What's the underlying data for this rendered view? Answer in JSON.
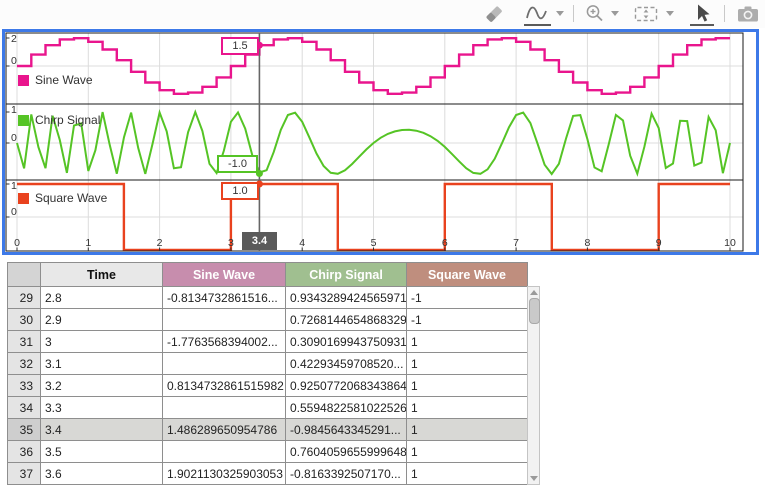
{
  "toolbar": {
    "tools": [
      {
        "name": "eraser",
        "active": false,
        "has_dropdown": false
      },
      {
        "name": "signal-trace",
        "active": true,
        "has_dropdown": true
      },
      {
        "name": "zoom-in",
        "active": false,
        "has_dropdown": true
      },
      {
        "name": "fit-to-view",
        "active": false,
        "has_dropdown": true
      },
      {
        "name": "pointer",
        "active": true,
        "has_dropdown": false
      },
      {
        "name": "snapshot-camera",
        "active": false,
        "has_dropdown": false
      }
    ]
  },
  "scope": {
    "border_color": "#3d79e8",
    "cursor": {
      "time": 3.4,
      "time_label": "3.4",
      "labels": [
        {
          "signal": "Sine Wave",
          "text": "1.5",
          "color": "#e9158d"
        },
        {
          "signal": "Chirp Signal",
          "text": "-1.0",
          "color": "#55c425"
        },
        {
          "signal": "Square Wave",
          "text": "1.0",
          "color": "#e9421e"
        }
      ]
    }
  },
  "chart_data": [
    {
      "type": "line",
      "name": "Sine Wave",
      "render": "staircase-zoh",
      "color": "#e9158d",
      "amplitude": 2,
      "period": 3,
      "sample_time": 0.2,
      "x_range": [
        0,
        10
      ],
      "x_ticks": [
        0,
        1,
        2,
        3,
        4,
        5,
        6,
        7,
        8,
        9,
        10
      ],
      "y_ticks": [
        2,
        0
      ],
      "formula": "2*sin(2*pi*t/3) held every 0.2 s",
      "cursor_value": 1.486289650954786
    },
    {
      "type": "line",
      "name": "Chirp Signal",
      "render": "linear-interp-samples",
      "color": "#55c425",
      "amplitude": 1,
      "sample_time": 0.1,
      "phase_f0": 6.5,
      "phase_k": 0.32,
      "x_range": [
        0,
        10
      ],
      "y_ticks": [
        1,
        0
      ],
      "formula": "sin(2*pi*(f0*t + k*t^2)) sampled every 0.1 s",
      "cursor_value": -0.9845643345291
    },
    {
      "type": "line",
      "name": "Square Wave",
      "render": "piecewise-constant",
      "color": "#e9421e",
      "amplitude": 1,
      "period": 3,
      "duty": 0.5,
      "high_intervals": [
        [
          0,
          1.5
        ],
        [
          3,
          4.5
        ],
        [
          6,
          7.5
        ],
        [
          9,
          10
        ]
      ],
      "x_range": [
        0,
        10
      ],
      "y_ticks": [
        1,
        0
      ],
      "cursor_value": 1
    }
  ],
  "table": {
    "headers": [
      {
        "label": "",
        "bg": "#d4d4d4",
        "fg": "#222"
      },
      {
        "label": "Time",
        "bg": "#e8e8e8",
        "fg": "#111"
      },
      {
        "label": "Sine Wave",
        "bg": "#c78dad",
        "fg": "#ffffff"
      },
      {
        "label": "Chirp Signal",
        "bg": "#a0bf90",
        "fg": "#ffffff"
      },
      {
        "label": "Square Wave",
        "bg": "#bf8e7e",
        "fg": "#ffffff"
      }
    ],
    "selected_row": "35",
    "rows": [
      {
        "index": "29",
        "time": "2.8",
        "sine": "-0.8134732861516...",
        "chirp": "0.9343289424565971",
        "square": "-1"
      },
      {
        "index": "30",
        "time": "2.9",
        "sine": "",
        "chirp": "0.7268144654868329",
        "square": "-1"
      },
      {
        "index": "31",
        "time": "3",
        "sine": "-1.7763568394002...",
        "chirp": "0.3090169943750931",
        "square": "1"
      },
      {
        "index": "32",
        "time": "3.1",
        "sine": "",
        "chirp": "0.42293459708520...",
        "square": "1"
      },
      {
        "index": "33",
        "time": "3.2",
        "sine": "0.8134732861515982",
        "chirp": "0.9250772068343864",
        "square": "1"
      },
      {
        "index": "34",
        "time": "3.3",
        "sine": "",
        "chirp": "0.5594822581022526",
        "square": "1"
      },
      {
        "index": "35",
        "time": "3.4",
        "sine": "1.486289650954786",
        "chirp": "-0.9845643345291...",
        "square": "1"
      },
      {
        "index": "36",
        "time": "3.5",
        "sine": "",
        "chirp": "0.7604059655999648",
        "square": "1"
      },
      {
        "index": "37",
        "time": "3.6",
        "sine": "1.9021130325903053",
        "chirp": "-0.8163392507170...",
        "square": "1"
      }
    ]
  }
}
